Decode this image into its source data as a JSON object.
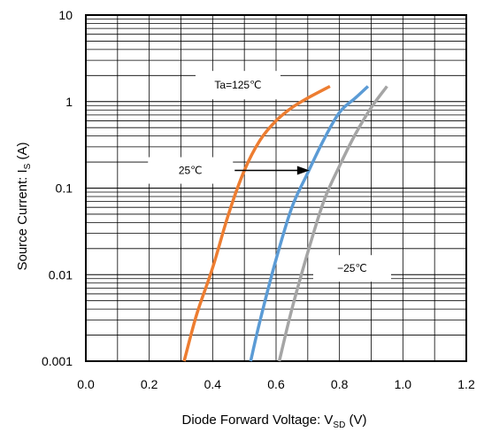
{
  "chart_data": {
    "type": "line",
    "title": "",
    "xlabel": "Diode Forward Voltage: V",
    "xlabel_sub": "SD",
    "xlabel_suffix": " (V)",
    "ylabel": "Source Current: I",
    "ylabel_sub": "S",
    "ylabel_suffix": " (A)",
    "xlim": [
      0.0,
      1.2
    ],
    "ylim": [
      0.001,
      10
    ],
    "yscale": "log",
    "grid": true,
    "x_ticks": [
      "0.0",
      "0.2",
      "0.4",
      "0.6",
      "0.8",
      "1.0",
      "1.2"
    ],
    "y_ticks": [
      "0.001",
      "0.01",
      "0.1",
      "1",
      "10"
    ],
    "series": [
      {
        "name": "Ta=125℃",
        "color": "#ED7D31",
        "points": [
          [
            0.31,
            0.001
          ],
          [
            0.35,
            0.0035
          ],
          [
            0.4,
            0.012
          ],
          [
            0.45,
            0.05
          ],
          [
            0.5,
            0.16
          ],
          [
            0.55,
            0.36
          ],
          [
            0.6,
            0.6
          ],
          [
            0.65,
            0.85
          ],
          [
            0.7,
            1.1
          ],
          [
            0.77,
            1.5
          ]
        ]
      },
      {
        "name": "25℃",
        "color": "#5B9BD5",
        "points": [
          [
            0.52,
            0.001
          ],
          [
            0.55,
            0.003
          ],
          [
            0.6,
            0.015
          ],
          [
            0.65,
            0.06
          ],
          [
            0.7,
            0.15
          ],
          [
            0.75,
            0.36
          ],
          [
            0.8,
            0.75
          ],
          [
            0.85,
            1.1
          ],
          [
            0.89,
            1.5
          ]
        ]
      },
      {
        "name": "-25℃",
        "color": "#A5A5A5",
        "points": [
          [
            0.61,
            0.001
          ],
          [
            0.65,
            0.004
          ],
          [
            0.7,
            0.018
          ],
          [
            0.75,
            0.07
          ],
          [
            0.8,
            0.18
          ],
          [
            0.85,
            0.42
          ],
          [
            0.9,
            0.85
          ],
          [
            0.95,
            1.5
          ]
        ]
      }
    ],
    "annotations": [
      {
        "text": "Ta=125℃",
        "x": 0.48,
        "y": 1.55
      },
      {
        "text": "25℃",
        "x": 0.33,
        "y": 0.16
      },
      {
        "text": "−25℃",
        "x": 0.84,
        "y": 0.0118
      }
    ]
  }
}
